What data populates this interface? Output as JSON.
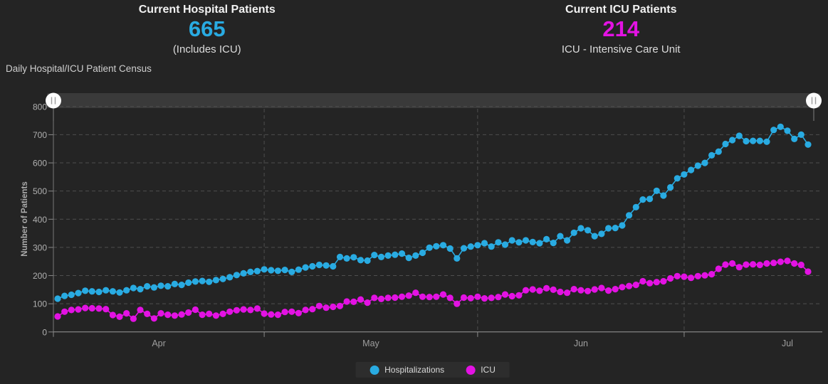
{
  "header": {
    "hospital": {
      "title": "Current Hospital Patients",
      "value": "665",
      "subtitle": "(Includes ICU)"
    },
    "icu": {
      "title": "Current ICU Patients",
      "value": "214",
      "subtitle": "ICU - Intensive Care Unit"
    }
  },
  "chart_title": "Daily Hospital/ICU Patient Census",
  "colors": {
    "hospitalizations": "#29abe2",
    "icu": "#e312e3",
    "background": "#242424",
    "gridline": "#4e4e4e",
    "axis_text": "#b0b0b0",
    "month_text": "#9e9e9e",
    "slider_track": "#3a3a3a",
    "slider_handle": "#fdfdfd"
  },
  "chart_data": {
    "type": "line",
    "title": "Daily Hospital/ICU Patient Census",
    "xlabel": "",
    "ylabel": "Number of Patients",
    "ylim": [
      0,
      800
    ],
    "y_ticks": [
      0,
      100,
      200,
      300,
      400,
      500,
      600,
      700,
      800
    ],
    "grid": "dashed",
    "legend_position": "bottom",
    "x_months": [
      {
        "label": "Apr",
        "days": 30
      },
      {
        "label": "May",
        "days": 31
      },
      {
        "label": "Jun",
        "days": 30
      },
      {
        "label": "Jul",
        "days": 19
      }
    ],
    "series": [
      {
        "name": "Hospitalizations",
        "color": "#29abe2",
        "values": [
          118,
          128,
          132,
          138,
          146,
          144,
          142,
          148,
          144,
          140,
          148,
          156,
          152,
          162,
          158,
          164,
          162,
          170,
          167,
          175,
          179,
          181,
          178,
          184,
          188,
          194,
          202,
          208,
          213,
          216,
          222,
          219,
          217,
          220,
          213,
          221,
          229,
          233,
          238,
          236,
          233,
          266,
          261,
          265,
          255,
          253,
          273,
          266,
          271,
          274,
          278,
          263,
          271,
          281,
          299,
          304,
          308,
          296,
          261,
          297,
          303,
          308,
          315,
          303,
          318,
          310,
          325,
          318,
          325,
          319,
          315,
          329,
          316,
          340,
          325,
          352,
          368,
          361,
          340,
          348,
          368,
          369,
          378,
          414,
          443,
          470,
          472,
          501,
          484,
          513,
          545,
          559,
          575,
          590,
          600,
          627,
          640,
          667,
          681,
          696,
          677,
          678,
          678,
          675,
          717,
          728,
          714,
          685,
          700,
          665
        ]
      },
      {
        "name": "ICU",
        "color": "#e312e3",
        "values": [
          55,
          72,
          78,
          80,
          85,
          84,
          83,
          81,
          60,
          54,
          66,
          47,
          78,
          64,
          48,
          66,
          61,
          58,
          62,
          69,
          79,
          61,
          64,
          58,
          64,
          72,
          77,
          80,
          78,
          83,
          65,
          62,
          61,
          71,
          72,
          67,
          78,
          81,
          92,
          86,
          89,
          92,
          108,
          107,
          115,
          104,
          121,
          117,
          121,
          122,
          125,
          129,
          139,
          125,
          124,
          125,
          133,
          121,
          100,
          122,
          120,
          125,
          119,
          121,
          124,
          133,
          127,
          130,
          148,
          151,
          146,
          155,
          150,
          142,
          139,
          152,
          148,
          145,
          151,
          156,
          147,
          152,
          159,
          163,
          167,
          180,
          173,
          177,
          180,
          190,
          198,
          196,
          192,
          198,
          201,
          205,
          224,
          239,
          243,
          230,
          239,
          240,
          238,
          243,
          245,
          249,
          252,
          243,
          238,
          214
        ]
      }
    ]
  },
  "legend": {
    "hospitalizations_label": "Hospitalizations",
    "icu_label": "ICU"
  }
}
